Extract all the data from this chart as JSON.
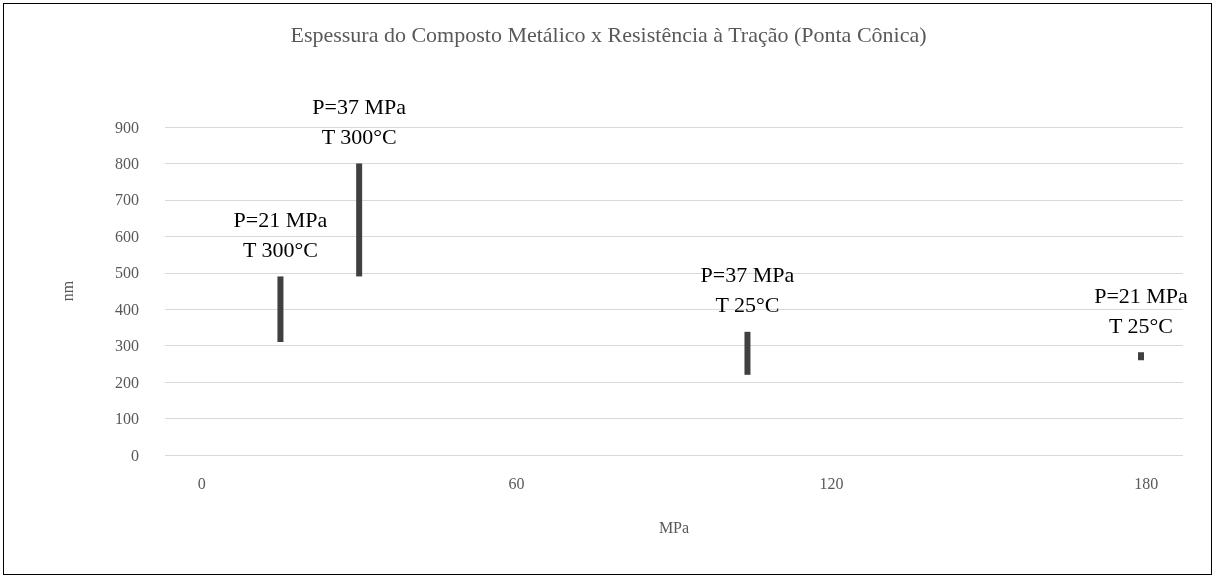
{
  "chart_data": {
    "type": "bar",
    "title": "Espessura do Composto Metálico x Resistência à Tração (Ponta Cônica)",
    "xlabel": "MPa",
    "ylabel": "nm",
    "x": [
      15,
      30,
      104,
      179
    ],
    "base": [
      310,
      490,
      220,
      260
    ],
    "values": [
      180,
      310,
      118,
      22
    ],
    "color": "#404040",
    "xlim": [
      -7,
      187
    ],
    "xticks": [
      0,
      60,
      120,
      180
    ],
    "ylim": [
      0,
      900
    ],
    "yticks": [
      0,
      100,
      200,
      300,
      400,
      500,
      600,
      700,
      800,
      900
    ],
    "grid": "y",
    "annotations": [
      {
        "text": "P=21 MPa\nT 300°C",
        "x": 15,
        "y": 490
      },
      {
        "text": "P=37 MPa\nT 300°C",
        "x": 30,
        "y": 800
      },
      {
        "text": "P=37 MPa\nT 25°C",
        "x": 104,
        "y": 338
      },
      {
        "text": "P=21 MPa\nT 25°C",
        "x": 179,
        "y": 282
      }
    ]
  }
}
